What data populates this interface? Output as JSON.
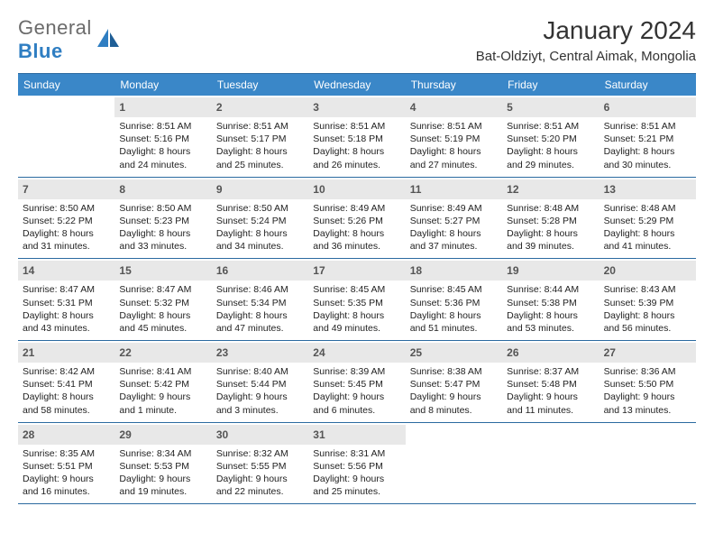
{
  "logo": {
    "left": "General",
    "right": "Blue"
  },
  "title": "January 2024",
  "location": "Bat-Oldziyt, Central Aimak, Mongolia",
  "colors": {
    "header_bg": "#3a87c8",
    "header_border": "#2b6aa0",
    "daynum_bg": "#e8e8e8",
    "logo_gray": "#6b6b6b",
    "logo_blue": "#2f7ec2"
  },
  "weekdays": [
    "Sunday",
    "Monday",
    "Tuesday",
    "Wednesday",
    "Thursday",
    "Friday",
    "Saturday"
  ],
  "weeks": [
    [
      {
        "blank": true
      },
      {
        "n": "1",
        "sunrise": "Sunrise: 8:51 AM",
        "sunset": "Sunset: 5:16 PM",
        "d1": "Daylight: 8 hours",
        "d2": "and 24 minutes."
      },
      {
        "n": "2",
        "sunrise": "Sunrise: 8:51 AM",
        "sunset": "Sunset: 5:17 PM",
        "d1": "Daylight: 8 hours",
        "d2": "and 25 minutes."
      },
      {
        "n": "3",
        "sunrise": "Sunrise: 8:51 AM",
        "sunset": "Sunset: 5:18 PM",
        "d1": "Daylight: 8 hours",
        "d2": "and 26 minutes."
      },
      {
        "n": "4",
        "sunrise": "Sunrise: 8:51 AM",
        "sunset": "Sunset: 5:19 PM",
        "d1": "Daylight: 8 hours",
        "d2": "and 27 minutes."
      },
      {
        "n": "5",
        "sunrise": "Sunrise: 8:51 AM",
        "sunset": "Sunset: 5:20 PM",
        "d1": "Daylight: 8 hours",
        "d2": "and 29 minutes."
      },
      {
        "n": "6",
        "sunrise": "Sunrise: 8:51 AM",
        "sunset": "Sunset: 5:21 PM",
        "d1": "Daylight: 8 hours",
        "d2": "and 30 minutes."
      }
    ],
    [
      {
        "n": "7",
        "sunrise": "Sunrise: 8:50 AM",
        "sunset": "Sunset: 5:22 PM",
        "d1": "Daylight: 8 hours",
        "d2": "and 31 minutes."
      },
      {
        "n": "8",
        "sunrise": "Sunrise: 8:50 AM",
        "sunset": "Sunset: 5:23 PM",
        "d1": "Daylight: 8 hours",
        "d2": "and 33 minutes."
      },
      {
        "n": "9",
        "sunrise": "Sunrise: 8:50 AM",
        "sunset": "Sunset: 5:24 PM",
        "d1": "Daylight: 8 hours",
        "d2": "and 34 minutes."
      },
      {
        "n": "10",
        "sunrise": "Sunrise: 8:49 AM",
        "sunset": "Sunset: 5:26 PM",
        "d1": "Daylight: 8 hours",
        "d2": "and 36 minutes."
      },
      {
        "n": "11",
        "sunrise": "Sunrise: 8:49 AM",
        "sunset": "Sunset: 5:27 PM",
        "d1": "Daylight: 8 hours",
        "d2": "and 37 minutes."
      },
      {
        "n": "12",
        "sunrise": "Sunrise: 8:48 AM",
        "sunset": "Sunset: 5:28 PM",
        "d1": "Daylight: 8 hours",
        "d2": "and 39 minutes."
      },
      {
        "n": "13",
        "sunrise": "Sunrise: 8:48 AM",
        "sunset": "Sunset: 5:29 PM",
        "d1": "Daylight: 8 hours",
        "d2": "and 41 minutes."
      }
    ],
    [
      {
        "n": "14",
        "sunrise": "Sunrise: 8:47 AM",
        "sunset": "Sunset: 5:31 PM",
        "d1": "Daylight: 8 hours",
        "d2": "and 43 minutes."
      },
      {
        "n": "15",
        "sunrise": "Sunrise: 8:47 AM",
        "sunset": "Sunset: 5:32 PM",
        "d1": "Daylight: 8 hours",
        "d2": "and 45 minutes."
      },
      {
        "n": "16",
        "sunrise": "Sunrise: 8:46 AM",
        "sunset": "Sunset: 5:34 PM",
        "d1": "Daylight: 8 hours",
        "d2": "and 47 minutes."
      },
      {
        "n": "17",
        "sunrise": "Sunrise: 8:45 AM",
        "sunset": "Sunset: 5:35 PM",
        "d1": "Daylight: 8 hours",
        "d2": "and 49 minutes."
      },
      {
        "n": "18",
        "sunrise": "Sunrise: 8:45 AM",
        "sunset": "Sunset: 5:36 PM",
        "d1": "Daylight: 8 hours",
        "d2": "and 51 minutes."
      },
      {
        "n": "19",
        "sunrise": "Sunrise: 8:44 AM",
        "sunset": "Sunset: 5:38 PM",
        "d1": "Daylight: 8 hours",
        "d2": "and 53 minutes."
      },
      {
        "n": "20",
        "sunrise": "Sunrise: 8:43 AM",
        "sunset": "Sunset: 5:39 PM",
        "d1": "Daylight: 8 hours",
        "d2": "and 56 minutes."
      }
    ],
    [
      {
        "n": "21",
        "sunrise": "Sunrise: 8:42 AM",
        "sunset": "Sunset: 5:41 PM",
        "d1": "Daylight: 8 hours",
        "d2": "and 58 minutes."
      },
      {
        "n": "22",
        "sunrise": "Sunrise: 8:41 AM",
        "sunset": "Sunset: 5:42 PM",
        "d1": "Daylight: 9 hours",
        "d2": "and 1 minute."
      },
      {
        "n": "23",
        "sunrise": "Sunrise: 8:40 AM",
        "sunset": "Sunset: 5:44 PM",
        "d1": "Daylight: 9 hours",
        "d2": "and 3 minutes."
      },
      {
        "n": "24",
        "sunrise": "Sunrise: 8:39 AM",
        "sunset": "Sunset: 5:45 PM",
        "d1": "Daylight: 9 hours",
        "d2": "and 6 minutes."
      },
      {
        "n": "25",
        "sunrise": "Sunrise: 8:38 AM",
        "sunset": "Sunset: 5:47 PM",
        "d1": "Daylight: 9 hours",
        "d2": "and 8 minutes."
      },
      {
        "n": "26",
        "sunrise": "Sunrise: 8:37 AM",
        "sunset": "Sunset: 5:48 PM",
        "d1": "Daylight: 9 hours",
        "d2": "and 11 minutes."
      },
      {
        "n": "27",
        "sunrise": "Sunrise: 8:36 AM",
        "sunset": "Sunset: 5:50 PM",
        "d1": "Daylight: 9 hours",
        "d2": "and 13 minutes."
      }
    ],
    [
      {
        "n": "28",
        "sunrise": "Sunrise: 8:35 AM",
        "sunset": "Sunset: 5:51 PM",
        "d1": "Daylight: 9 hours",
        "d2": "and 16 minutes."
      },
      {
        "n": "29",
        "sunrise": "Sunrise: 8:34 AM",
        "sunset": "Sunset: 5:53 PM",
        "d1": "Daylight: 9 hours",
        "d2": "and 19 minutes."
      },
      {
        "n": "30",
        "sunrise": "Sunrise: 8:32 AM",
        "sunset": "Sunset: 5:55 PM",
        "d1": "Daylight: 9 hours",
        "d2": "and 22 minutes."
      },
      {
        "n": "31",
        "sunrise": "Sunrise: 8:31 AM",
        "sunset": "Sunset: 5:56 PM",
        "d1": "Daylight: 9 hours",
        "d2": "and 25 minutes."
      },
      {
        "blank": true
      },
      {
        "blank": true
      },
      {
        "blank": true
      }
    ]
  ]
}
